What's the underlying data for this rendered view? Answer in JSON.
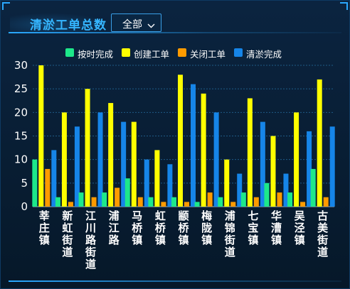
{
  "panel": {
    "title": "清淤工单总数",
    "filter": {
      "selected": "全部"
    }
  },
  "colors": {
    "on_time": "#1de88a",
    "created": "#ffff00",
    "closed": "#ff9b00",
    "cleared": "#1685e8",
    "axis_text": "#ffffff",
    "grid": "#1f5a86",
    "title": "#35b6ff"
  },
  "chart_data": {
    "type": "bar",
    "categories": [
      "莘庄镇",
      "新虹街道",
      "江川路街道",
      "浦江路",
      "马桥镇",
      "虹桥镇",
      "颛桥镇",
      "梅陇镇",
      "浦锦街道",
      "七宝镇",
      "华漕镇",
      "吴泾镇",
      "古美街道"
    ],
    "series": [
      {
        "name": "按时完成",
        "values": [
          10,
          2,
          3,
          3,
          6,
          2,
          2,
          1,
          2,
          3,
          5,
          3,
          8
        ]
      },
      {
        "name": "创建工单",
        "values": [
          30,
          20,
          25,
          22,
          18,
          12,
          28,
          24,
          10,
          23,
          15,
          20,
          27
        ]
      },
      {
        "name": "关闭工单",
        "values": [
          8,
          1,
          2,
          4,
          2,
          1,
          1,
          3,
          1,
          2,
          3,
          1,
          2
        ]
      },
      {
        "name": "清淤完成",
        "values": [
          12,
          17,
          20,
          18,
          10,
          9,
          26,
          20,
          7,
          18,
          7,
          16,
          17
        ]
      }
    ],
    "ylim": [
      0,
      30
    ],
    "yticks": [
      0,
      5,
      10,
      15,
      20,
      25,
      30
    ],
    "grid": true,
    "legend_position": "top-center"
  }
}
